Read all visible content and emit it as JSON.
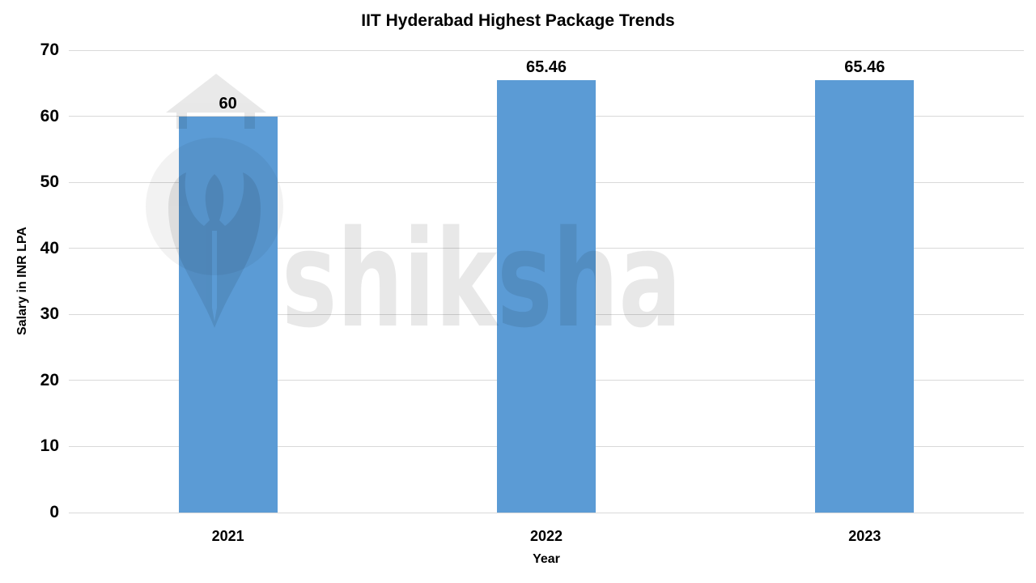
{
  "watermark": {
    "text": "shiksha"
  },
  "chart_data": {
    "type": "bar",
    "title": "IIT Hyderabad Highest Package Trends",
    "categories": [
      "2021",
      "2022",
      "2023"
    ],
    "values": [
      60,
      65.46,
      65.46
    ],
    "data_labels": [
      "60",
      "65.46",
      "65.46"
    ],
    "xlabel": "Year",
    "ylabel": "Salary in INR LPA",
    "ylim": [
      0,
      70
    ],
    "yticks": [
      0,
      10,
      20,
      30,
      40,
      50,
      60,
      70
    ],
    "grid": "horizontal",
    "legend": "none",
    "colors": {
      "bar": "#5B9BD5",
      "gridline": "#D9D9D9",
      "text": "#000000",
      "background": "#FFFFFF",
      "watermark_gray": "#000000"
    }
  }
}
